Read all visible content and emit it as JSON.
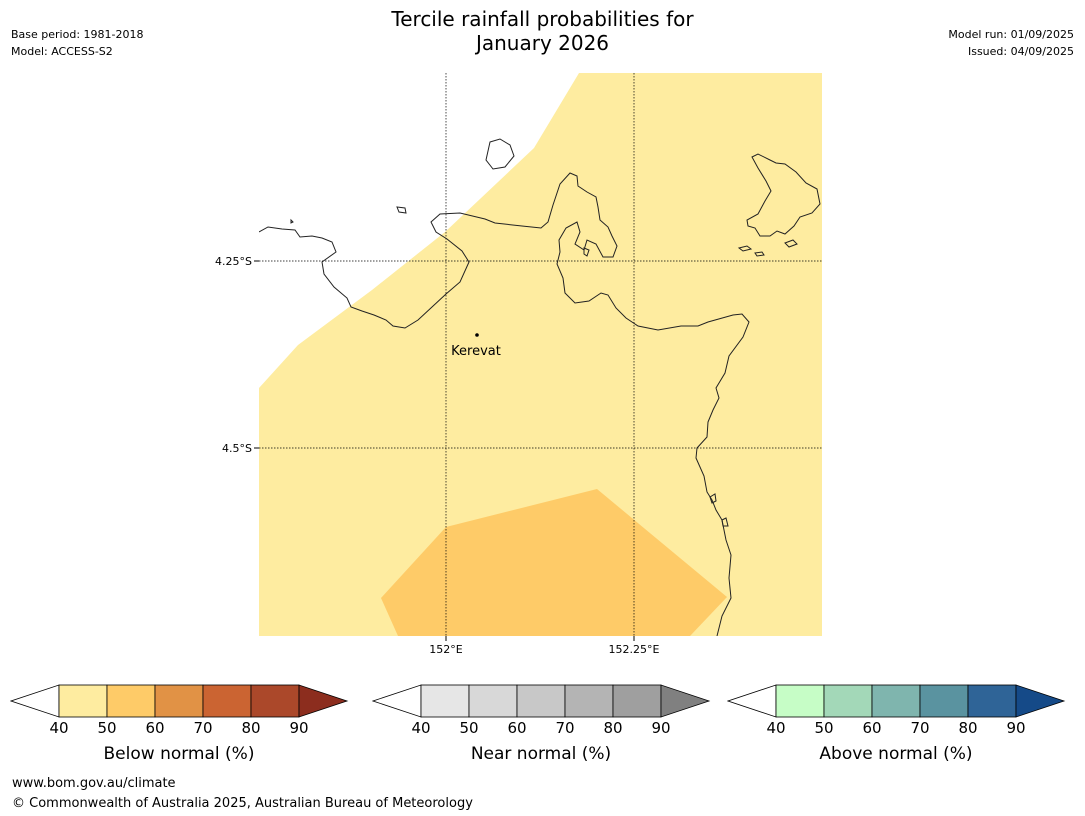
{
  "title_line1": "Tercile rainfall probabilities for",
  "title_line2": "January 2026",
  "meta": {
    "base_period": "Base period: 1981-2018",
    "model": "Model: ACCESS-S2",
    "model_run": "Model run: 01/09/2025",
    "issued": "Issued: 04/09/2025"
  },
  "map": {
    "lat_labels": [
      "4.25°S",
      "4.5°S"
    ],
    "lon_labels": [
      "152°E",
      "152.25°E"
    ],
    "place": "Kerevat",
    "colors": {
      "below_40_50": "#feeca0",
      "below_50_60": "#fecb68"
    }
  },
  "colorbars": [
    {
      "label": "Below normal (%)",
      "ticks": [
        "40",
        "50",
        "60",
        "70",
        "80",
        "90"
      ],
      "colors": [
        "#feeca0",
        "#fecb68",
        "#e19245",
        "#cb6432",
        "#ab482a",
        "#8c2d1e"
      ]
    },
    {
      "label": "Near normal (%)",
      "ticks": [
        "40",
        "50",
        "60",
        "70",
        "80",
        "90"
      ],
      "colors": [
        "#e6e6e6",
        "#d8d8d8",
        "#c8c8c8",
        "#b4b4b4",
        "#9f9f9f",
        "#808080"
      ]
    },
    {
      "label": "Above normal (%)",
      "ticks": [
        "40",
        "50",
        "60",
        "70",
        "80",
        "90"
      ],
      "colors": [
        "#c6fdc6",
        "#a3d8b8",
        "#7fb5ae",
        "#5a93a0",
        "#2f6497",
        "#154a88"
      ]
    }
  ],
  "footer": {
    "url": "www.bom.gov.au/climate",
    "copyright": "© Commonwealth of Australia 2025, Australian Bureau of Meteorology"
  }
}
